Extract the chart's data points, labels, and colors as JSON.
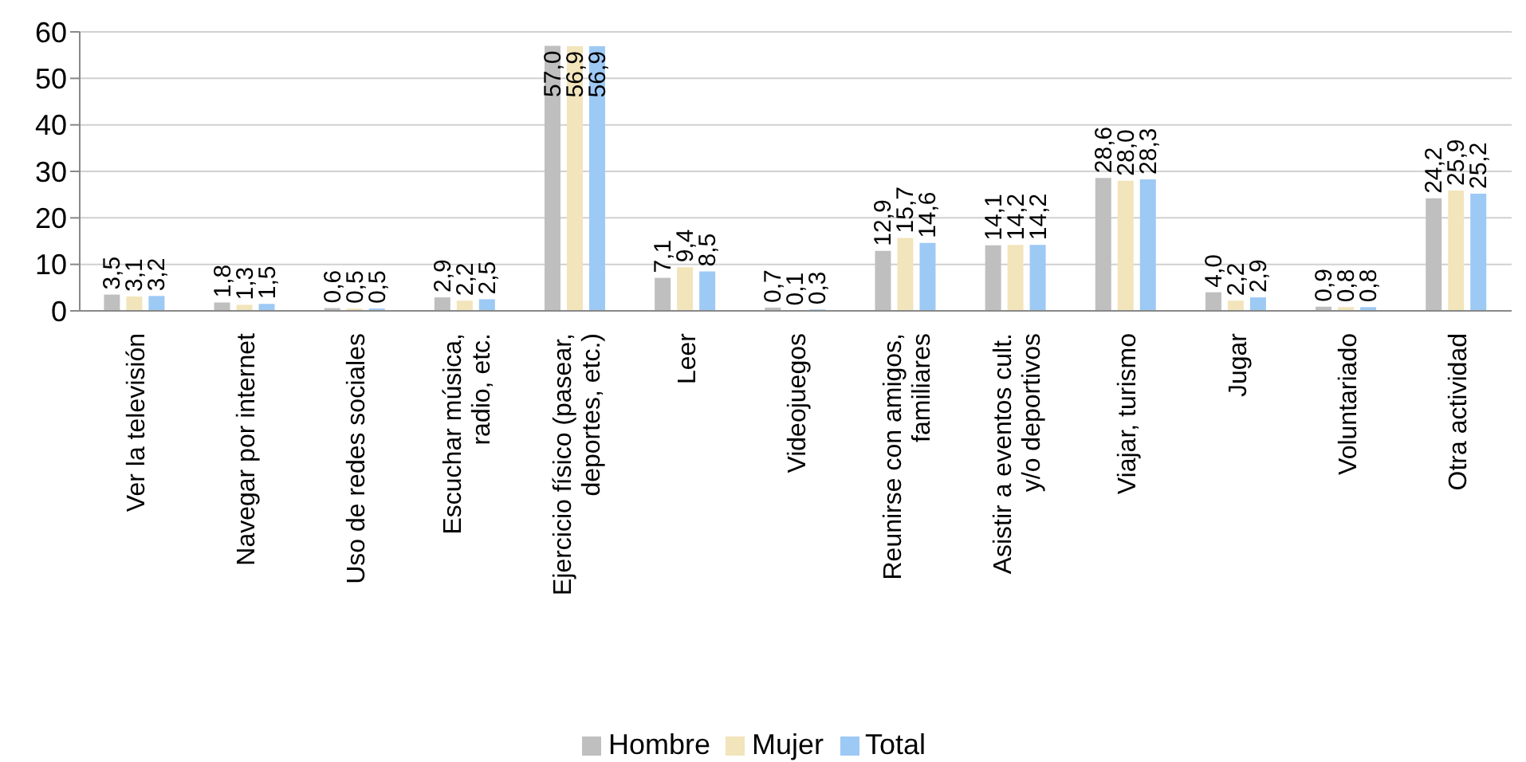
{
  "chart_data": {
    "type": "bar",
    "categories": [
      "Ver la televisión",
      "Navegar por internet",
      "Uso de redes sociales",
      "Escuchar música,\nradio, etc.",
      "Ejercicio físico (pasear,\ndeportes, etc.)",
      "Leer",
      "Videojuegos",
      "Reunirse con amigos,\nfamiliares",
      "Asistir a eventos cult.\ny/o deportivos",
      "Viajar, turismo",
      "Jugar",
      "Voluntariado",
      "Otra actividad"
    ],
    "series": [
      {
        "name": "Hombre",
        "color": "#bfbfbf",
        "values": [
          3.5,
          1.8,
          0.6,
          2.9,
          57.0,
          7.1,
          0.7,
          12.9,
          14.1,
          28.6,
          4.0,
          0.9,
          24.2
        ],
        "value_labels": [
          "3,5",
          "1,8",
          "0,6",
          "2,9",
          "57,0",
          "7,1",
          "0,7",
          "12,9",
          "14,1",
          "28,6",
          "4,0",
          "0,9",
          "24,2"
        ]
      },
      {
        "name": "Mujer",
        "color": "#f2e4bb",
        "values": [
          3.1,
          1.3,
          0.5,
          2.2,
          56.9,
          9.4,
          0.1,
          15.7,
          14.2,
          28.0,
          2.2,
          0.8,
          25.9
        ],
        "value_labels": [
          "3,1",
          "1,3",
          "0,5",
          "2,2",
          "56,9",
          "9,4",
          "0,1",
          "15,7",
          "14,2",
          "28,0",
          "2,2",
          "0,8",
          "25,9"
        ]
      },
      {
        "name": "Total",
        "color": "#9dc9f5",
        "values": [
          3.2,
          1.5,
          0.5,
          2.5,
          56.9,
          8.5,
          0.3,
          14.6,
          14.2,
          28.3,
          2.9,
          0.8,
          25.2
        ],
        "value_labels": [
          "3,2",
          "1,5",
          "0,5",
          "2,5",
          "56,9",
          "8,5",
          "0,3",
          "14,6",
          "14,2",
          "28,3",
          "2,9",
          "0,8",
          "25,2"
        ]
      }
    ],
    "ylim": [
      0,
      60
    ],
    "yticks": [
      0,
      10,
      20,
      30,
      40,
      50,
      60
    ],
    "grid": "y",
    "legend": "bottom"
  }
}
